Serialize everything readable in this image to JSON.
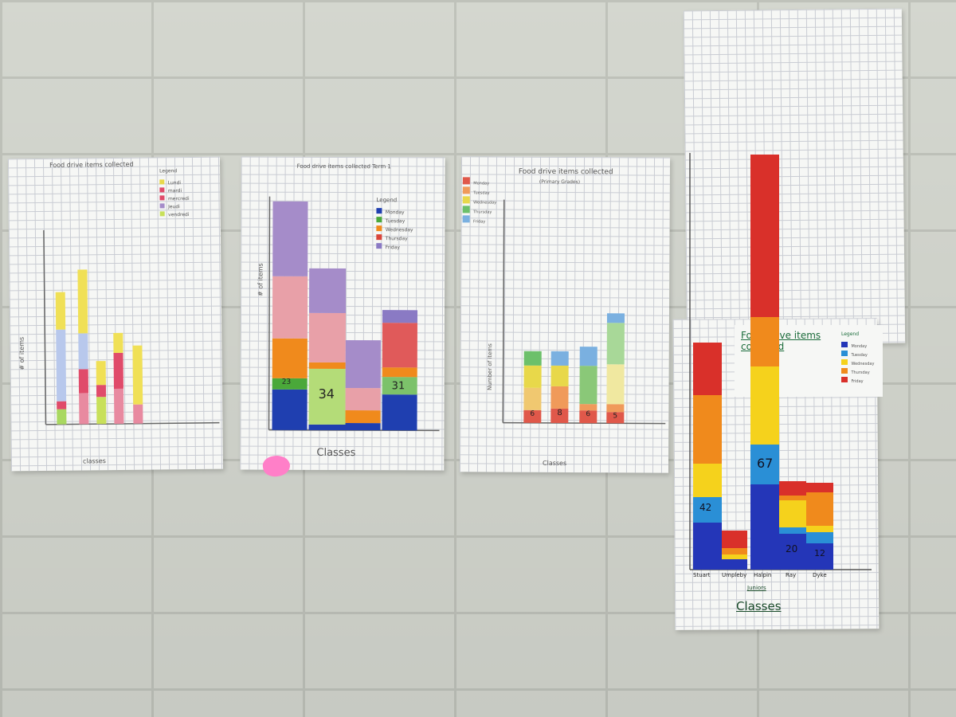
{
  "posters": [
    {
      "title": "Food drive items collected",
      "ylabel": "# of items",
      "xlabel": "classes",
      "legend_title": "Legend",
      "legend": [
        {
          "label": "Lundi",
          "color": "#e8d84a"
        },
        {
          "label": "mardi",
          "color": "#e04b6a"
        },
        {
          "label": "mercredi",
          "color": "#e04b6a"
        },
        {
          "label": "Jeudi",
          "color": "#a58cc9"
        },
        {
          "label": "vendredi",
          "color": "#c8e05a"
        }
      ]
    },
    {
      "title": "Food drive items collected Term 1",
      "ylabel": "# of items",
      "xlabel": "Classes",
      "legend_title": "Legend",
      "legend": [
        {
          "label": "Monday",
          "color": "#1f3fb0"
        },
        {
          "label": "Tuesday",
          "color": "#4aa83a"
        },
        {
          "label": "Wednesday",
          "color": "#f08a1c"
        },
        {
          "label": "Thursday",
          "color": "#d9453a"
        },
        {
          "label": "Friday",
          "color": "#8a7ac4"
        }
      ],
      "bar_labels": [
        "23",
        "34",
        "31"
      ]
    },
    {
      "title": "Food drive items collected",
      "subtitle": "(Primary Grades)",
      "ylabel": "Number of items",
      "xlabel": "Classes",
      "legend": [
        {
          "label": "Monday",
          "color": "#e0584a"
        },
        {
          "label": "Tuesday",
          "color": "#f09a5a"
        },
        {
          "label": "Wednesday",
          "color": "#e8d84a"
        },
        {
          "label": "Thursday",
          "color": "#6cc06a"
        },
        {
          "label": "Friday",
          "color": "#7ab0e0"
        }
      ],
      "bar_labels": [
        "6",
        "8",
        "6",
        "5"
      ]
    },
    {
      "title": "Food drive items collected",
      "xlabel": "Classes",
      "xsublabel": "Juniors",
      "legend_title": "Legend",
      "legend": [
        {
          "label": "Monday",
          "color": "#2436b8"
        },
        {
          "label": "Tuesday",
          "color": "#2a8fd6"
        },
        {
          "label": "Wednesday",
          "color": "#f5d21c"
        },
        {
          "label": "Thursday",
          "color": "#f08a1c"
        },
        {
          "label": "Friday",
          "color": "#d9302a"
        }
      ],
      "categories": [
        "Stuart",
        "Umpleby",
        "Halpin",
        "Ray",
        "Dyke"
      ],
      "bar_labels": [
        "42",
        "67",
        "20",
        "12"
      ]
    }
  ]
}
